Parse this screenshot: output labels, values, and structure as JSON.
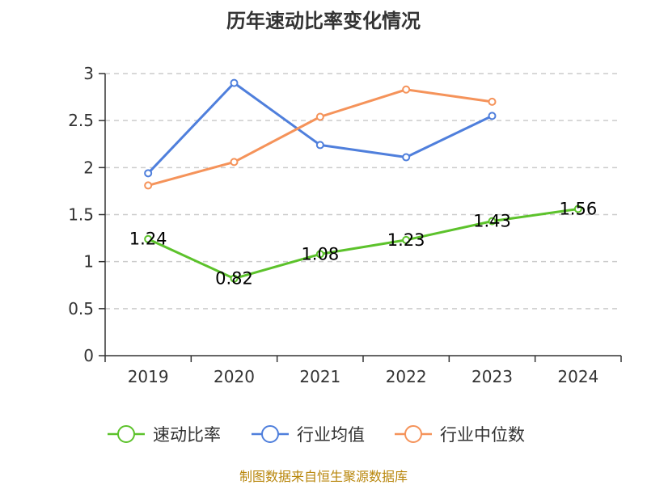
{
  "chart_data": {
    "type": "line",
    "title": "历年速动比率变化情况",
    "categories": [
      "2019",
      "2020",
      "2021",
      "2022",
      "2023",
      "2024"
    ],
    "ylim": [
      0,
      3
    ],
    "yticks": [
      0,
      0.5,
      1,
      1.5,
      2,
      2.5,
      3
    ],
    "ytick_labels": [
      "0",
      "0.5",
      "1",
      "1.5",
      "2",
      "2.5",
      "3"
    ],
    "grid": true,
    "legend_position": "bottom",
    "series": [
      {
        "name": "速动比率",
        "color": "#5cc22b",
        "values": [
          1.24,
          0.82,
          1.08,
          1.23,
          1.43,
          1.56
        ],
        "labels": [
          "1.24",
          "0.82",
          "1.08",
          "1.23",
          "1.43",
          "1.56"
        ]
      },
      {
        "name": "行业均值",
        "color": "#4f7fdc",
        "values": [
          1.94,
          2.9,
          2.24,
          2.11,
          2.55,
          null
        ]
      },
      {
        "name": "行业中位数",
        "color": "#f5935a",
        "values": [
          1.81,
          2.06,
          2.54,
          2.83,
          2.7,
          null
        ]
      }
    ]
  },
  "footer": {
    "source": "制图数据来自恒生聚源数据库"
  }
}
